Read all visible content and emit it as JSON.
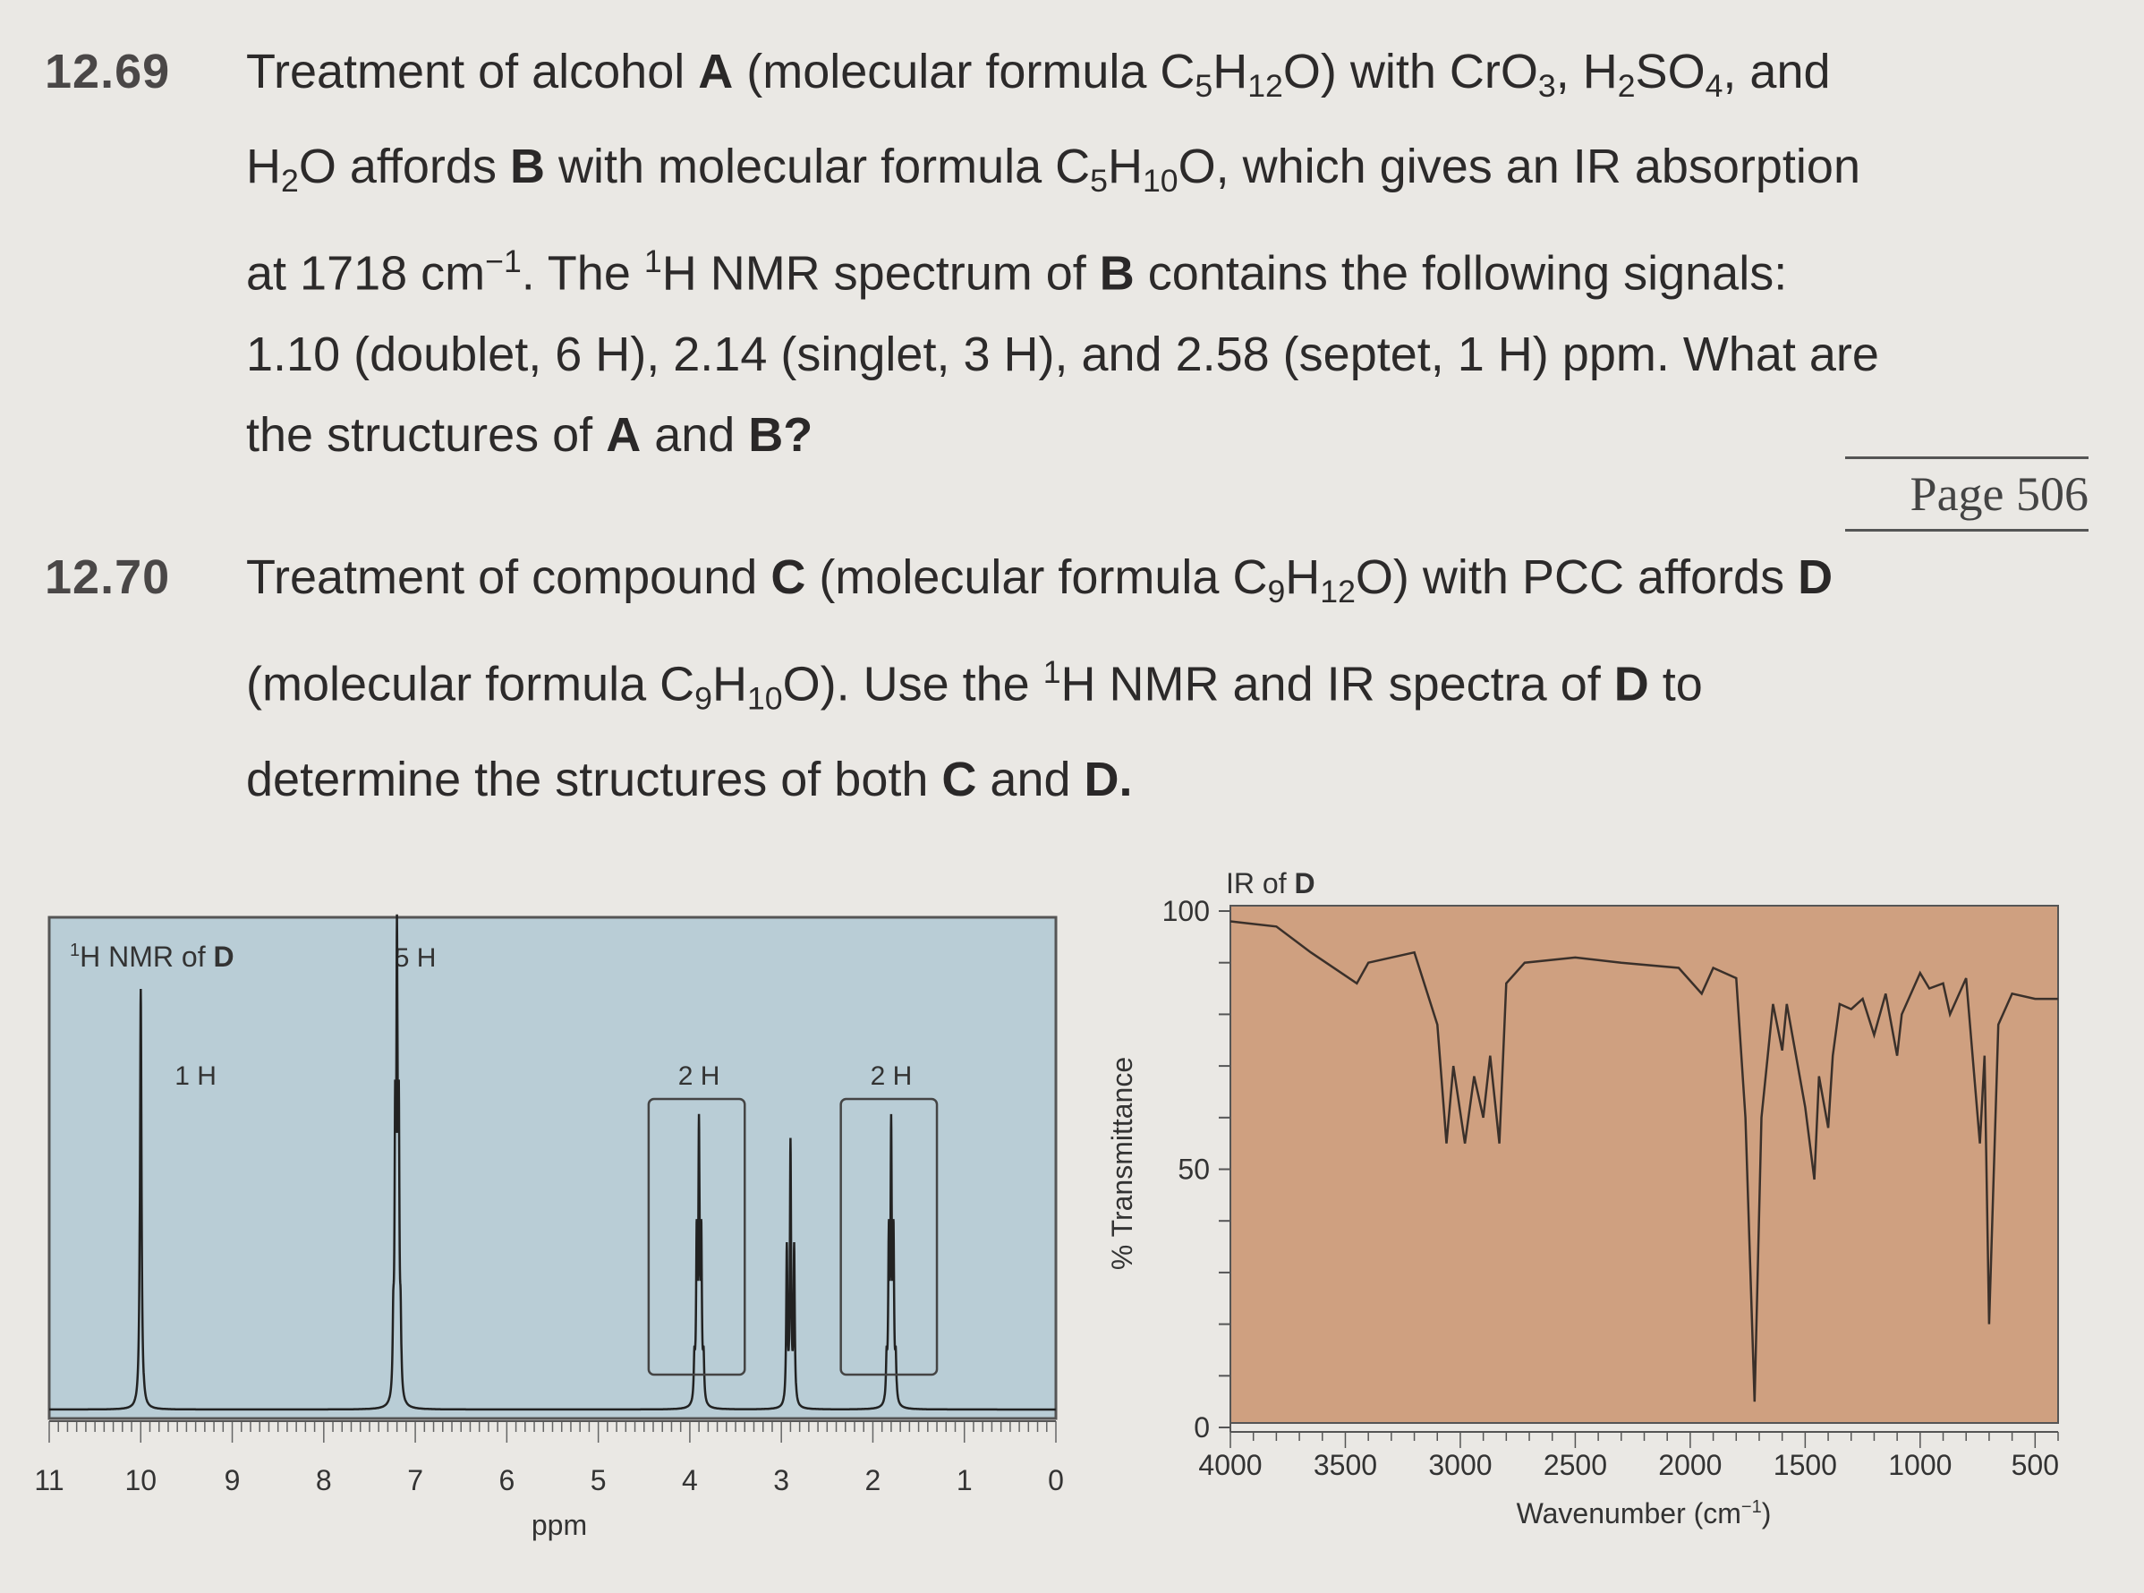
{
  "problem_1269": {
    "number": "12.69",
    "p1": "Treatment of alcohol ",
    "A": "A",
    "p2": " (molecular formula C",
    "s5": "5",
    "H": "H",
    "s12": "12",
    "p3": "O) with CrO",
    "s3": "3",
    "p4": ",  H",
    "s2": "2",
    "p5": "SO",
    "s4": "4",
    "p6": ", and",
    "p7": "H",
    "p8": "O affords ",
    "B": "B",
    "p9": " with molecular formula C",
    "s10": "10",
    "p10": "O, which gives an IR absorption",
    "p11": "at 1718 cm",
    "sup_minus1": "−1",
    "p12": ". The ",
    "sup1": "1",
    "p13": "H NMR spectrum of ",
    "p14": " contains the following signals:",
    "p15": "1.10 (doublet, 6 H), 2.14 (singlet, 3 H), and 2.58 (septet, 1 H) ppm. What are",
    "p16": "the structures of ",
    "p17": " and ",
    "Bq": "B?"
  },
  "page_label": "Page 506",
  "problem_1270": {
    "number": "12.70",
    "p1": "Treatment of compound ",
    "C": "C",
    "p2": " (molecular formula C",
    "s9": "9",
    "H": "H",
    "s12": "12",
    "p3": "O) with PCC affords ",
    "D": "D",
    "p4": "(molecular formula C",
    "s10": "10",
    "p5": "O). Use the ",
    "sup1": "1",
    "p6": "H NMR and IR spectra of ",
    "p7": " to",
    "p8": "determine the structures of both ",
    "p9": " and ",
    "Dp": "D."
  },
  "chart_data": [
    {
      "type": "line",
      "title": "1H NMR of D",
      "title_sup": "1",
      "title_main": "H NMR of ",
      "title_bold": "D",
      "xlabel": "ppm",
      "x_reversed": true,
      "xlim": [
        11,
        0
      ],
      "x_ticks": [
        "11",
        "10",
        "9",
        "8",
        "7",
        "6",
        "5",
        "4",
        "3",
        "2",
        "1",
        "0"
      ],
      "integration_labels": [
        "1 H",
        "5 H",
        "2 H",
        "2 H"
      ],
      "peaks": [
        {
          "ppm": 10.0,
          "H": 1,
          "multiplicity": "singlet"
        },
        {
          "ppm": 7.2,
          "H": 5,
          "multiplicity": "multiplet"
        },
        {
          "ppm": 3.9,
          "H": 2,
          "multiplicity": "multiplet (expanded)"
        },
        {
          "ppm": 2.9,
          "H": 2,
          "multiplicity": "multiplet"
        },
        {
          "ppm": 1.8,
          "H": 2,
          "multiplicity": "multiplet (expanded)"
        }
      ],
      "background": "#b9cdd6"
    },
    {
      "type": "line",
      "title": "IR of D",
      "title_main": "IR of ",
      "title_bold": "D",
      "xlabel": "Wavenumber (cm",
      "xlabel_sup": "−1",
      "xlabel_end": ")",
      "ylabel": "% Transmittance",
      "x_reversed": true,
      "xlim": [
        4000,
        400
      ],
      "ylim": [
        0,
        100
      ],
      "x_ticks": [
        "4000",
        "3500",
        "3000",
        "2500",
        "2000",
        "1500",
        "1000",
        "500"
      ],
      "y_ticks": [
        "0",
        "50",
        "100"
      ],
      "points": [
        [
          4000,
          98
        ],
        [
          3800,
          97
        ],
        [
          3650,
          92
        ],
        [
          3450,
          86
        ],
        [
          3400,
          90
        ],
        [
          3200,
          92
        ],
        [
          3100,
          78
        ],
        [
          3060,
          55
        ],
        [
          3030,
          70
        ],
        [
          2980,
          55
        ],
        [
          2940,
          68
        ],
        [
          2900,
          60
        ],
        [
          2870,
          72
        ],
        [
          2830,
          55
        ],
        [
          2800,
          86
        ],
        [
          2720,
          90
        ],
        [
          2500,
          91
        ],
        [
          2300,
          90
        ],
        [
          2050,
          89
        ],
        [
          1950,
          84
        ],
        [
          1900,
          89
        ],
        [
          1800,
          87
        ],
        [
          1760,
          60
        ],
        [
          1720,
          5
        ],
        [
          1690,
          60
        ],
        [
          1640,
          82
        ],
        [
          1600,
          73
        ],
        [
          1580,
          82
        ],
        [
          1500,
          62
        ],
        [
          1460,
          48
        ],
        [
          1440,
          68
        ],
        [
          1400,
          58
        ],
        [
          1380,
          72
        ],
        [
          1350,
          82
        ],
        [
          1300,
          81
        ],
        [
          1250,
          83
        ],
        [
          1200,
          76
        ],
        [
          1150,
          84
        ],
        [
          1100,
          72
        ],
        [
          1080,
          80
        ],
        [
          1000,
          88
        ],
        [
          960,
          85
        ],
        [
          900,
          86
        ],
        [
          870,
          80
        ],
        [
          800,
          87
        ],
        [
          740,
          55
        ],
        [
          720,
          72
        ],
        [
          700,
          20
        ],
        [
          660,
          78
        ],
        [
          600,
          84
        ],
        [
          500,
          83
        ],
        [
          420,
          83
        ],
        [
          400,
          83
        ]
      ],
      "background": "#cfa080"
    }
  ]
}
